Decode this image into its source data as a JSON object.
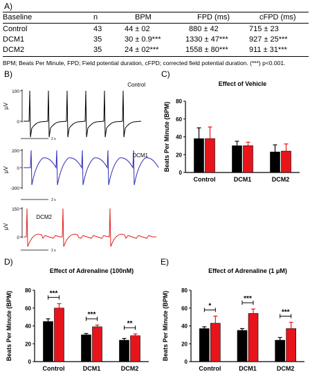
{
  "panel_labels": {
    "a": "A)",
    "b": "B)",
    "c": "C)",
    "d": "D)",
    "e": "E)"
  },
  "table": {
    "headers": [
      "Baseline",
      "n",
      "BPM",
      "FPD (ms)",
      "cFPD (ms)"
    ],
    "rows": [
      [
        "Control",
        "43",
        "44 ± 02",
        "880 ± 42",
        "715 ± 23"
      ],
      [
        "DCM1",
        "35",
        "30 ± 0.9***",
        "1330 ± 47***",
        "927 ± 25***"
      ],
      [
        "DCM2",
        "35",
        "24 ± 02***",
        "1558 ± 80***",
        "911 ± 31***"
      ]
    ],
    "footnote": "BPM; Beats Per Minute, FPD; Field potential duration, cFPD; corrected field potential duration. (***) p<0.001."
  },
  "traces": [
    {
      "label": "Control",
      "unit": "µV",
      "yticks": [
        "100",
        "0"
      ],
      "scale_label": "2 s",
      "color": "#000000"
    },
    {
      "label": "DCM1",
      "unit": "µV",
      "yticks": [
        "200",
        "0",
        "-300"
      ],
      "scale_label": "2 s",
      "color": "#2b2bb5"
    },
    {
      "label": "DCM2",
      "unit": "µV",
      "yticks": [
        "150",
        "0"
      ],
      "scale_label": "2 s",
      "color": "#e02020"
    }
  ],
  "chart_data": [
    {
      "type": "bar",
      "title": "Effect of Vehicle",
      "ylabel": "Beats Per  Minute (BPM)",
      "categories": [
        "Control",
        "DCM1",
        "DCM2"
      ],
      "ylim": [
        0,
        80
      ],
      "yticks": [
        "0",
        "20",
        "40",
        "60",
        "80"
      ],
      "series": [
        {
          "color": "#000000",
          "values": [
            38,
            30,
            23
          ],
          "errors": [
            12,
            5,
            8
          ]
        },
        {
          "color": "#e8141b",
          "values": [
            38,
            30,
            24
          ],
          "errors": [
            13,
            4,
            8
          ]
        }
      ],
      "significance": [
        "",
        "",
        ""
      ]
    },
    {
      "type": "bar",
      "title": "Effect of  Adrenaline (100nM)",
      "ylabel": "Beats Per  Minute (BPM)",
      "categories": [
        "Control",
        "DCM1",
        "DCM2"
      ],
      "ylim": [
        0,
        80
      ],
      "yticks": [
        "0",
        "20",
        "40",
        "60",
        "80"
      ],
      "series": [
        {
          "color": "#000000",
          "values": [
            45,
            30,
            24
          ],
          "errors": [
            3,
            1.5,
            2
          ]
        },
        {
          "color": "#e8141b",
          "values": [
            60,
            39,
            29
          ],
          "errors": [
            5,
            2,
            2
          ]
        }
      ],
      "significance": [
        "***",
        "***",
        "**"
      ]
    },
    {
      "type": "bar",
      "title": "Effect of  Adrenaline (1 μM)",
      "ylabel": "Beats Per  Minute (BPM)",
      "categories": [
        "Control",
        "DCM1",
        "DCM2"
      ],
      "ylim": [
        0,
        80
      ],
      "yticks": [
        "0",
        "20",
        "40",
        "60",
        "80"
      ],
      "series": [
        {
          "color": "#000000",
          "values": [
            37,
            35,
            24
          ],
          "errors": [
            2,
            2,
            3
          ]
        },
        {
          "color": "#e8141b",
          "values": [
            43,
            54,
            37
          ],
          "errors": [
            8,
            5,
            7
          ]
        }
      ],
      "significance": [
        "*",
        "***",
        "***"
      ]
    }
  ]
}
